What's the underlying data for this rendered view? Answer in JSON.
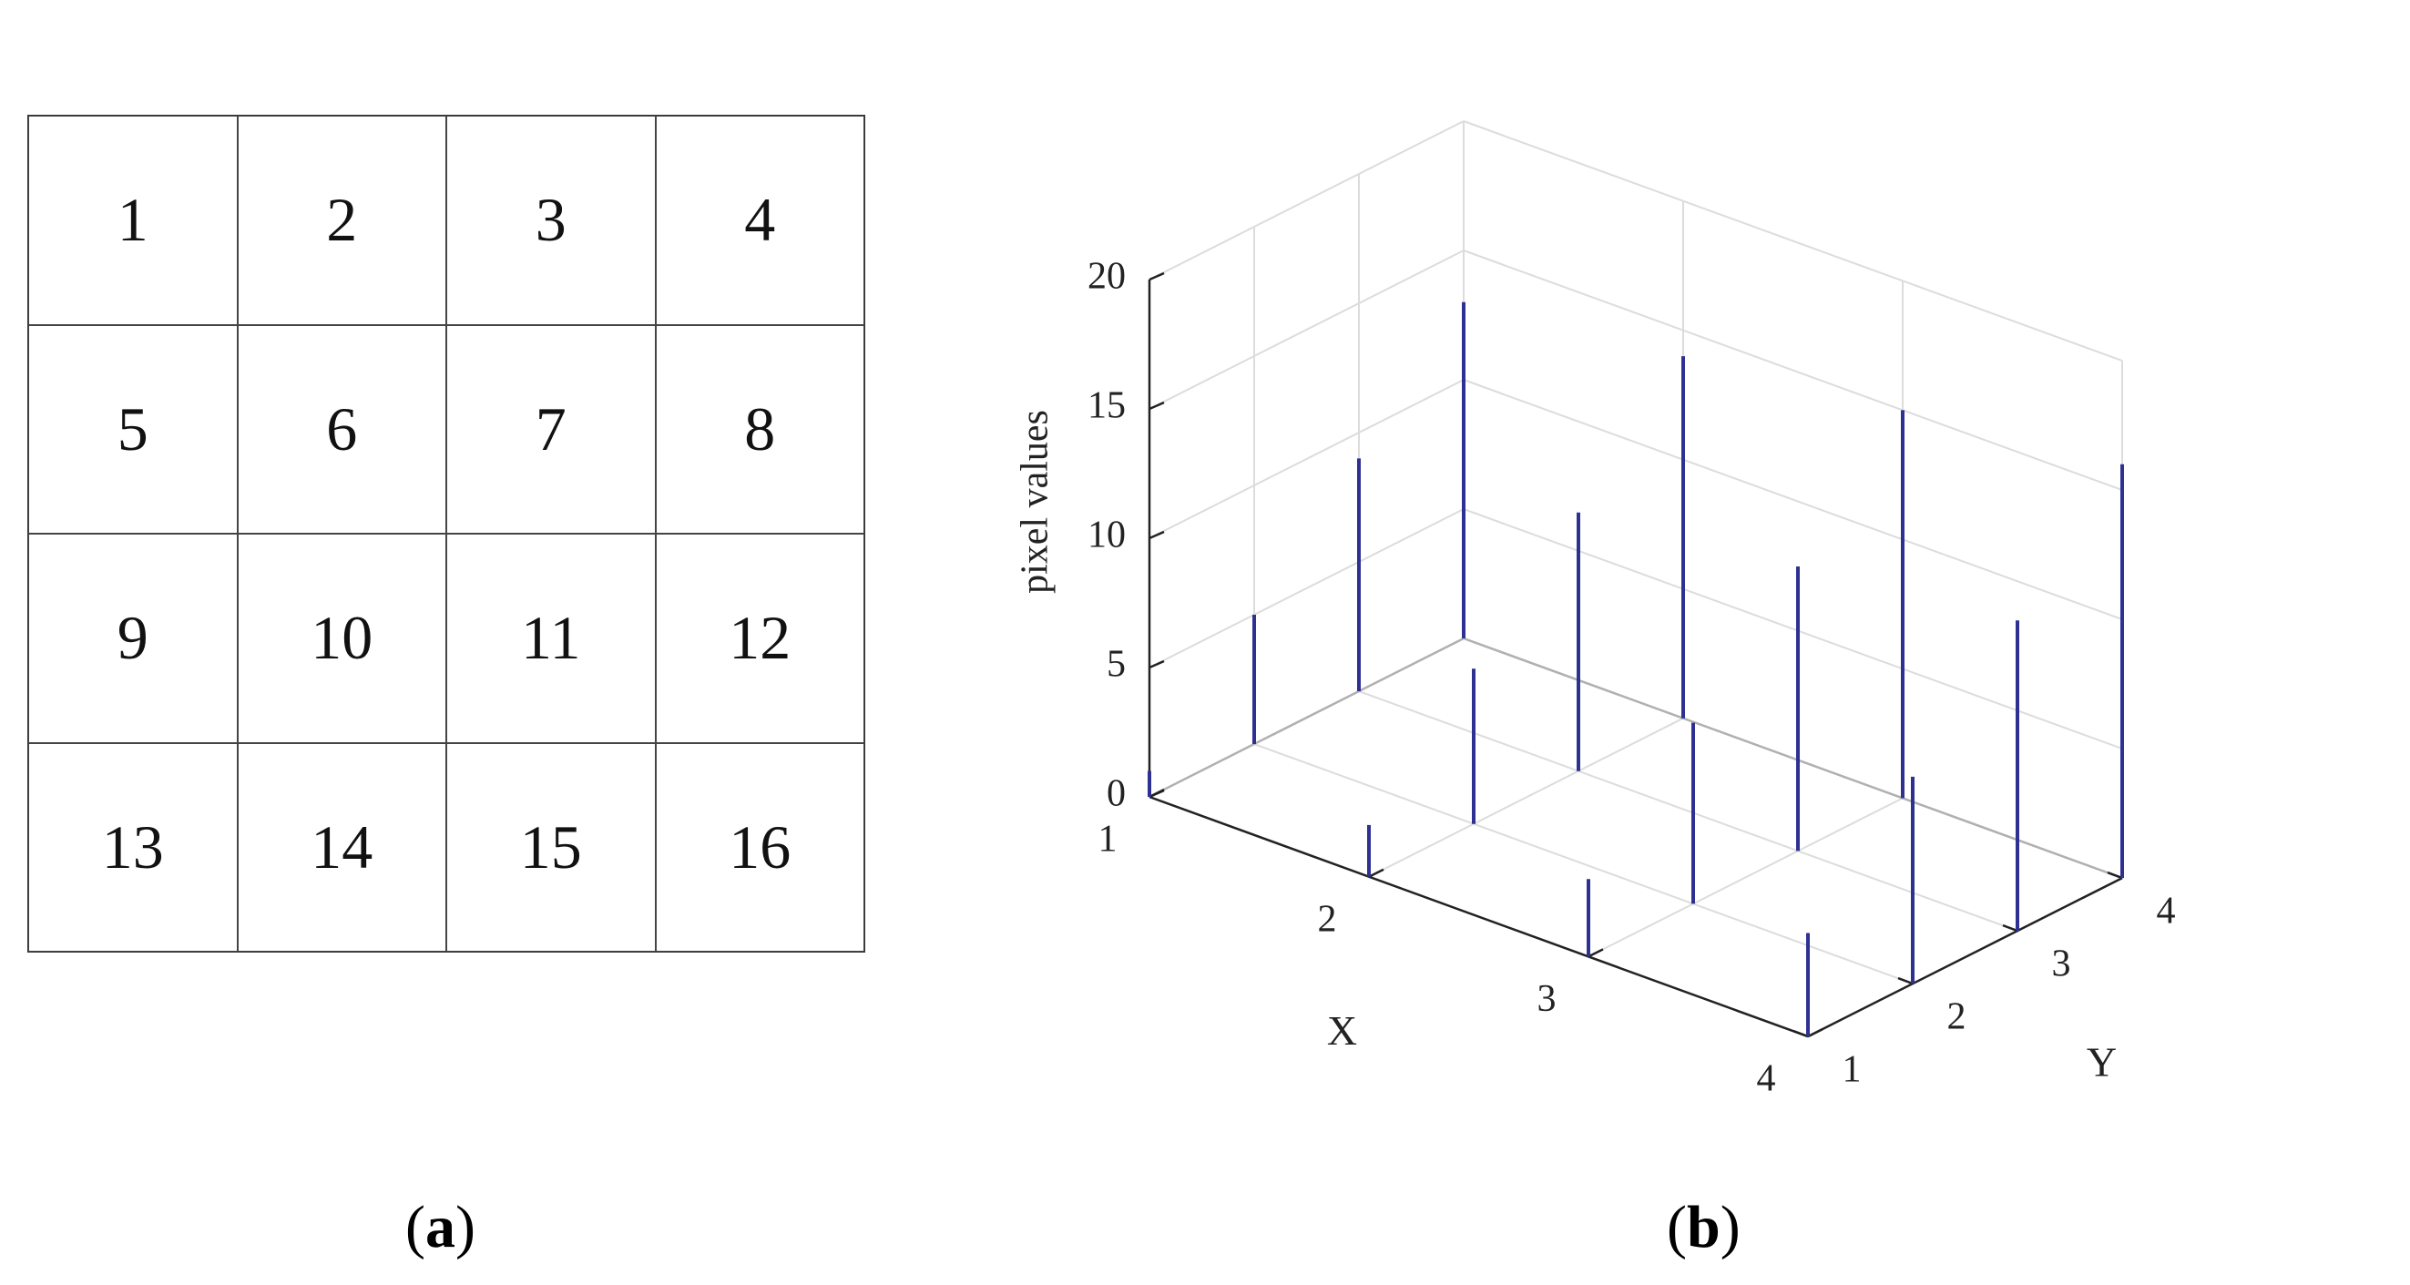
{
  "panel_a": {
    "label_open": "(",
    "label_letter": "a",
    "label_close": ")",
    "cells": [
      "1",
      "2",
      "3",
      "4",
      "5",
      "6",
      "7",
      "8",
      "9",
      "10",
      "11",
      "12",
      "13",
      "14",
      "15",
      "16"
    ]
  },
  "panel_b": {
    "label_open": "(",
    "label_letter": "b",
    "label_close": ")"
  },
  "chart_data": {
    "type": "stem3",
    "xlabel": "X",
    "ylabel": "Y",
    "zlabel": "pixel values",
    "x_ticks": [
      1,
      2,
      3,
      4
    ],
    "y_ticks": [
      1,
      2,
      3,
      4
    ],
    "z_ticks": [
      0,
      5,
      10,
      15,
      20
    ],
    "zlim": [
      0,
      20
    ],
    "grid": true,
    "stem_color": "#2e3192",
    "points": [
      {
        "x": 1,
        "y": 1,
        "z": 1
      },
      {
        "x": 2,
        "y": 1,
        "z": 2
      },
      {
        "x": 3,
        "y": 1,
        "z": 3
      },
      {
        "x": 4,
        "y": 1,
        "z": 4
      },
      {
        "x": 1,
        "y": 2,
        "z": 5
      },
      {
        "x": 2,
        "y": 2,
        "z": 6
      },
      {
        "x": 3,
        "y": 2,
        "z": 7
      },
      {
        "x": 4,
        "y": 2,
        "z": 8
      },
      {
        "x": 1,
        "y": 3,
        "z": 9
      },
      {
        "x": 2,
        "y": 3,
        "z": 10
      },
      {
        "x": 3,
        "y": 3,
        "z": 11
      },
      {
        "x": 4,
        "y": 3,
        "z": 12
      },
      {
        "x": 1,
        "y": 4,
        "z": 13
      },
      {
        "x": 2,
        "y": 4,
        "z": 14
      },
      {
        "x": 3,
        "y": 4,
        "z": 15
      },
      {
        "x": 4,
        "y": 4,
        "z": 16
      }
    ]
  }
}
